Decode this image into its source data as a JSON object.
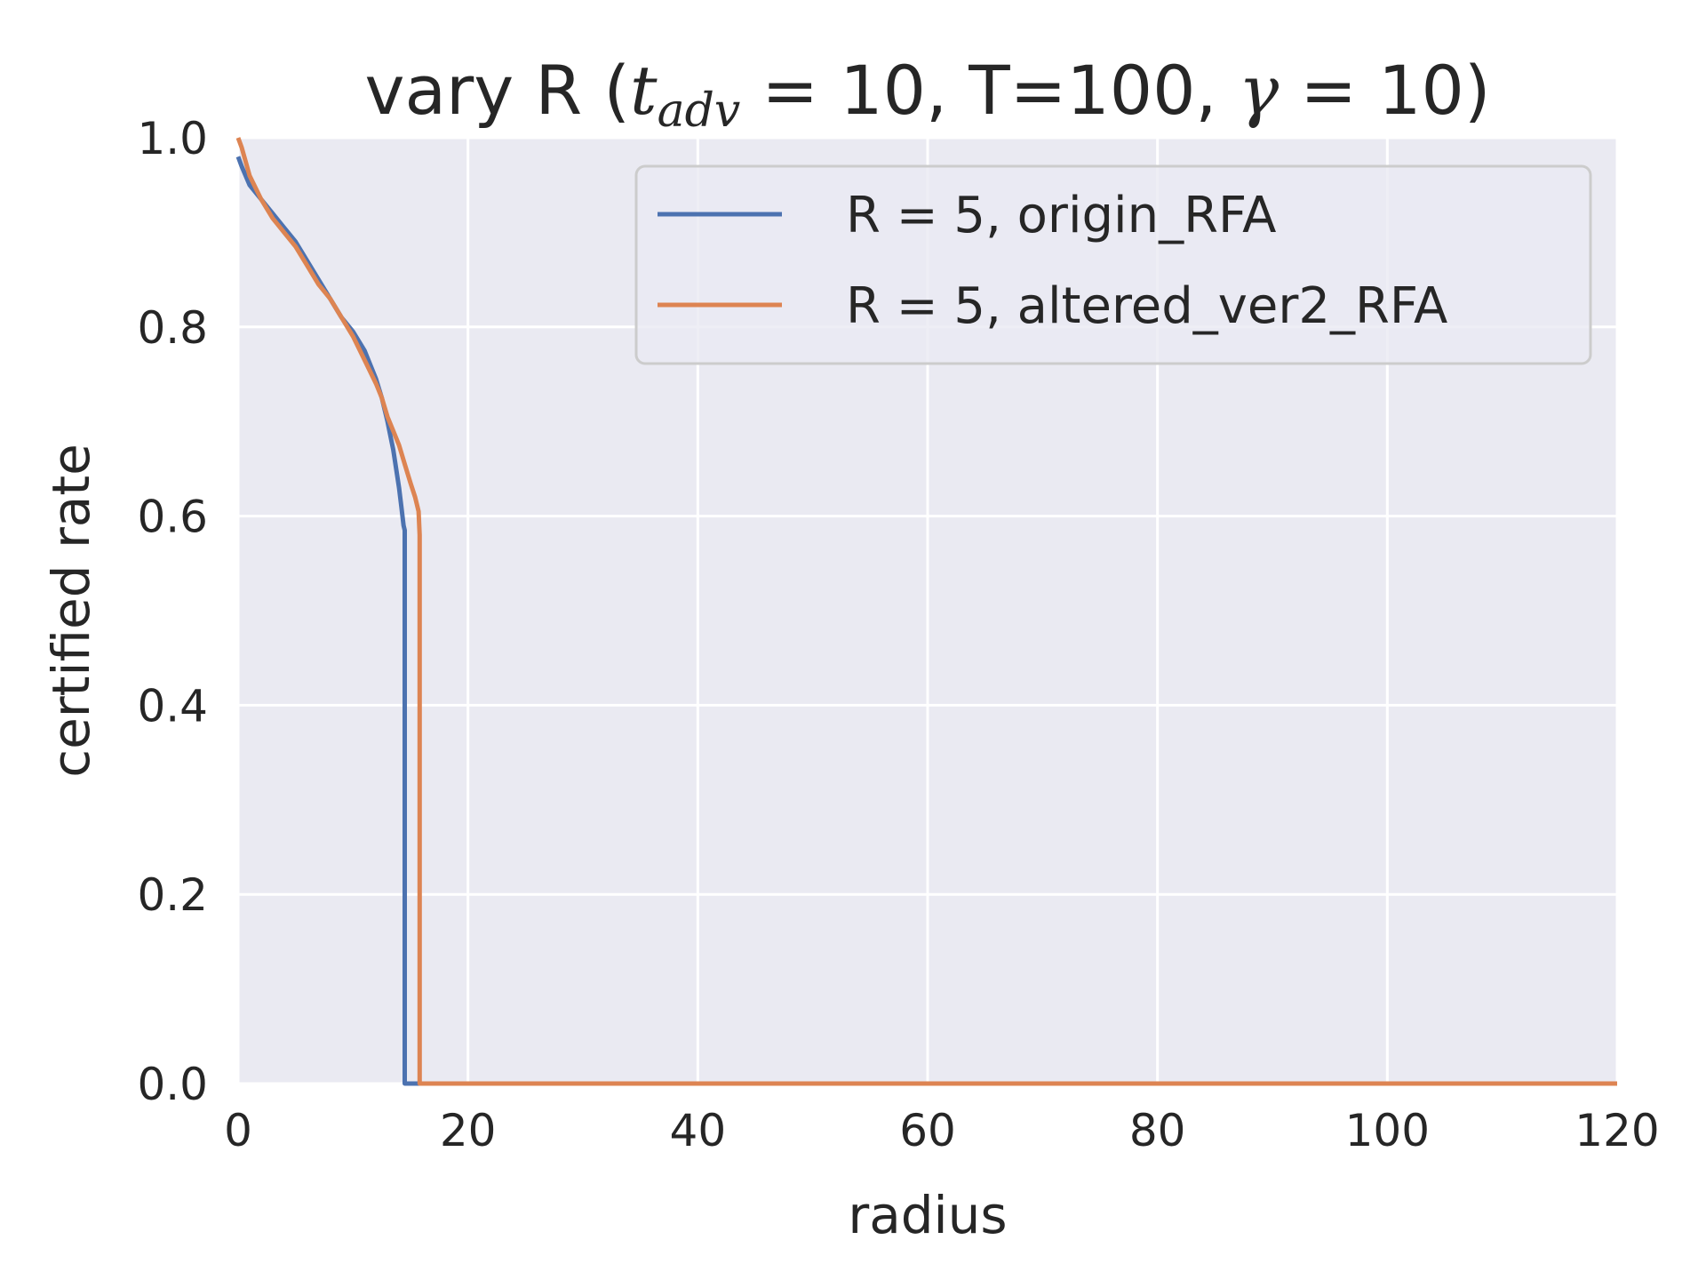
{
  "chart_data": {
    "type": "line",
    "title": {
      "prefix": "vary R (",
      "t_var": "t",
      "t_sub": "adv",
      "t_eq": " = 10, T=100, ",
      "gamma_var": "γ",
      "gamma_eq": " = 10)"
    },
    "xlabel": "radius",
    "ylabel": "certified rate",
    "xlim": [
      0,
      120
    ],
    "ylim": [
      0,
      1
    ],
    "xticks": [
      0,
      20,
      40,
      60,
      80,
      100,
      120
    ],
    "xtick_labels": [
      "0",
      "20",
      "40",
      "60",
      "80",
      "100",
      "120"
    ],
    "yticks": [
      0,
      0.2,
      0.4,
      0.6,
      0.8,
      1.0
    ],
    "ytick_labels": [
      "0.0",
      "0.2",
      "0.4",
      "0.6",
      "0.8",
      "1.0"
    ],
    "grid": true,
    "legend_position": "top-right",
    "series": [
      {
        "name": "R = 5, origin_RFA",
        "color": "#4c72b0",
        "x": [
          0,
          0.3,
          1,
          2,
          3,
          4,
          5,
          6,
          7,
          8,
          9,
          10,
          11,
          12,
          12.5,
          13,
          13.5,
          14,
          14.2,
          14.4,
          14.5,
          14.5,
          14.5,
          120
        ],
        "y": [
          0.98,
          0.97,
          0.95,
          0.935,
          0.92,
          0.905,
          0.89,
          0.87,
          0.85,
          0.83,
          0.81,
          0.795,
          0.775,
          0.745,
          0.725,
          0.7,
          0.67,
          0.63,
          0.61,
          0.59,
          0.585,
          0.3,
          0.0,
          0.0
        ]
      },
      {
        "name": "R = 5, altered_ver2_RFA",
        "color": "#dd8452",
        "x": [
          0,
          0.3,
          1,
          2,
          3,
          4,
          5,
          6,
          7,
          8,
          9,
          10,
          11,
          12,
          12.5,
          13,
          13.5,
          14,
          14.5,
          15,
          15.4,
          15.7,
          15.8,
          15.8,
          15.8,
          120
        ],
        "y": [
          1.0,
          0.99,
          0.96,
          0.935,
          0.915,
          0.9,
          0.885,
          0.865,
          0.845,
          0.83,
          0.81,
          0.79,
          0.765,
          0.74,
          0.725,
          0.705,
          0.69,
          0.675,
          0.655,
          0.635,
          0.62,
          0.605,
          0.58,
          0.3,
          0.0,
          0.0
        ]
      }
    ]
  }
}
